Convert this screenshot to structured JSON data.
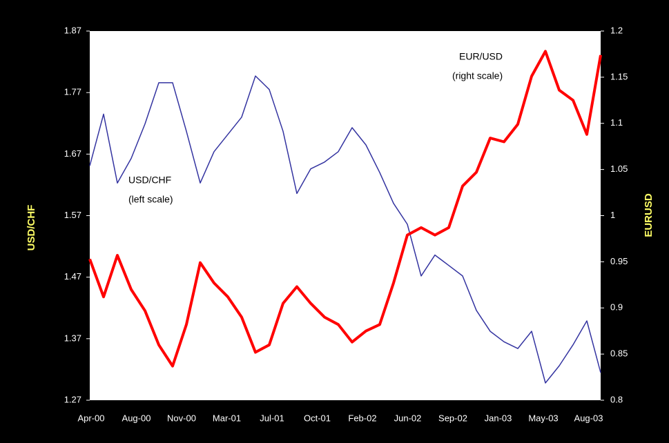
{
  "chart_data": {
    "type": "line",
    "xticks": [
      "Apr-00",
      "Aug-00",
      "Nov-00",
      "Mar-01",
      "Jul-01",
      "Oct-01",
      "Feb-02",
      "Jun-02",
      "Sep-02",
      "Jan-03",
      "May-03",
      "Aug-03"
    ],
    "ylabel": "USD/CHF",
    "y2label": "EURUSD",
    "ylim": [
      1.27,
      1.87
    ],
    "yticks": [
      1.27,
      1.37,
      1.47,
      1.57,
      1.67,
      1.77,
      1.87
    ],
    "y2lim": [
      0.8,
      1.2
    ],
    "y2ticks": [
      0.8,
      0.85,
      0.9,
      0.95,
      1,
      1.05,
      1.1,
      1.15,
      1.2
    ],
    "annotations": [
      "USD/CHF",
      "(left scale)",
      "EUR/USD",
      "(right scale)"
    ],
    "series": [
      {
        "name": "USD/CHF",
        "color": "#3333a0",
        "axis": "y",
        "values": [
          1.651,
          1.735,
          1.623,
          1.663,
          1.719,
          1.786,
          1.786,
          1.707,
          1.623,
          1.674,
          1.702,
          1.73,
          1.797,
          1.775,
          1.707,
          1.606,
          1.646,
          1.657,
          1.674,
          1.713,
          1.685,
          1.64,
          1.59,
          1.556,
          1.472,
          1.506,
          1.489,
          1.472,
          1.416,
          1.382,
          1.365,
          1.354,
          1.382,
          1.298,
          1.326,
          1.36,
          1.399,
          1.315
        ]
      },
      {
        "name": "EUR/USD",
        "color": "#ff0000",
        "axis": "y2",
        "values": [
          0.953,
          0.912,
          0.957,
          0.92,
          0.897,
          0.86,
          0.837,
          0.882,
          0.949,
          0.927,
          0.912,
          0.89,
          0.852,
          0.86,
          0.905,
          0.923,
          0.905,
          0.89,
          0.882,
          0.863,
          0.875,
          0.882,
          0.927,
          0.979,
          0.987,
          0.979,
          0.987,
          1.032,
          1.047,
          1.084,
          1.08,
          1.099,
          1.151,
          1.178,
          1.136,
          1.125,
          1.088,
          1.174
        ]
      }
    ]
  }
}
